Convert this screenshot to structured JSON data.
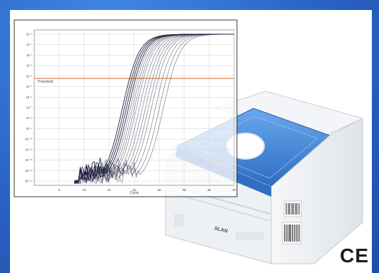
{
  "chart_data": {
    "type": "line",
    "title": "",
    "threshold_label": "Threshold",
    "xlabel": "Cycle",
    "ylabel": "",
    "x_ticks": [
      "5",
      "10",
      "15",
      "20",
      "25",
      "30",
      "35",
      "40"
    ],
    "y_ticks": [
      "10⁻⁰",
      "10⁻¹",
      "10⁻²",
      "10⁻³",
      "10⁻⁴",
      "10⁻⁵",
      "10⁻⁶",
      "10⁻⁷",
      "10⁻⁸",
      "10⁻⁹",
      "10⁻¹⁰",
      "10⁻¹¹",
      "10⁻¹²",
      "10⁻¹³",
      "10⁻¹⁴"
    ],
    "xlim": [
      0,
      40
    ],
    "grid": true,
    "series_midpoints": [
      17.6,
      18.0,
      18.4,
      18.8,
      19.2,
      19.6,
      20.0,
      20.4,
      21.0,
      21.6,
      22.2,
      22.8,
      23.4,
      24.2,
      25.0,
      25.8
    ],
    "colors": {
      "threshold": "#d9804a",
      "curves": "#1c1c3c",
      "grid": "#d7d7d7"
    }
  },
  "device": {
    "label": "SLAN",
    "colors": {
      "lid": "#3d7fd3",
      "body": "#eef1f4",
      "accent": "#ffffff"
    }
  },
  "marks": {
    "ce": "CE"
  },
  "colors": {
    "background": "#2a63c4",
    "panel": "#ffffff"
  }
}
